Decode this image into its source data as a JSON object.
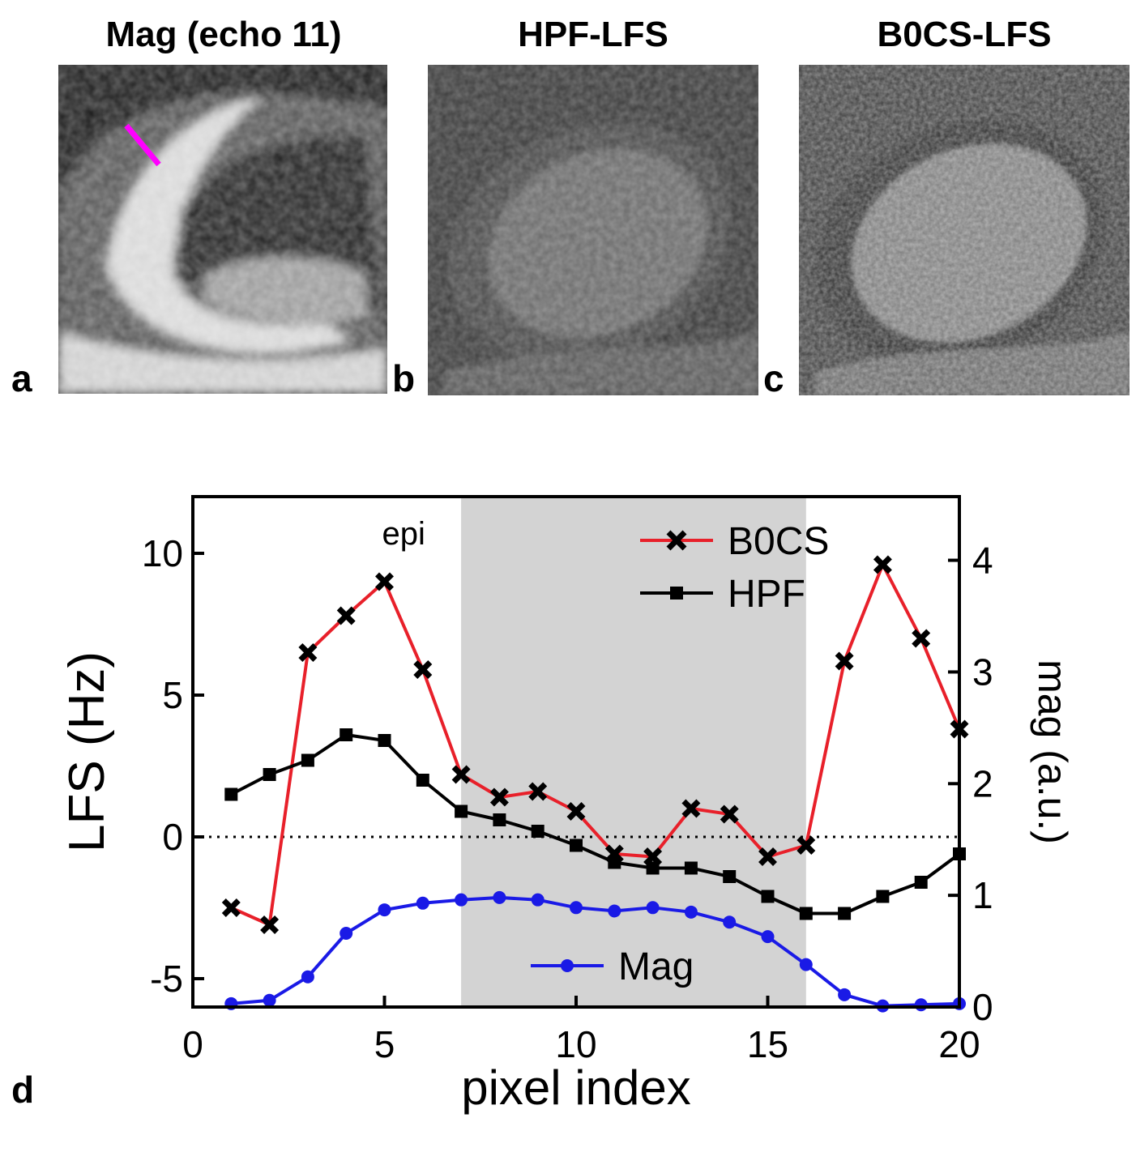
{
  "panels": {
    "a": {
      "title": "Mag (echo 11)",
      "letter": "a"
    },
    "b": {
      "title": "HPF-LFS",
      "letter": "b"
    },
    "c": {
      "title": "B0CS-LFS",
      "letter": "c"
    },
    "d": {
      "letter": "d"
    }
  },
  "colors": {
    "b0cs": "#e8202a",
    "hpf": "#000000",
    "mag": "#1a1ae6",
    "shade": "#d3d3d3",
    "marker_line": "#ff00ff"
  },
  "chart_data": {
    "type": "line",
    "xlabel": "pixel index",
    "ylabel": "LFS (Hz)",
    "y2label": "mag (a.u.)",
    "xlim": [
      0,
      20
    ],
    "ylim": [
      -6,
      12
    ],
    "y2lim": [
      0,
      4.57
    ],
    "x_ticks": [
      0,
      5,
      10,
      15,
      20
    ],
    "y_ticks": [
      -5,
      0,
      5,
      10
    ],
    "y2_ticks": [
      0,
      1,
      2,
      3,
      4
    ],
    "shaded_region": [
      7,
      16
    ],
    "zero_line": true,
    "annotation": "epi",
    "x": [
      1,
      2,
      3,
      4,
      5,
      6,
      7,
      8,
      9,
      10,
      11,
      12,
      13,
      14,
      15,
      16,
      17,
      18,
      19,
      20
    ],
    "series": [
      {
        "name": "B0CS",
        "axis": "left",
        "marker": "x",
        "x": [
          1,
          2,
          3,
          4,
          5,
          6,
          7,
          8,
          9,
          10,
          11,
          12,
          13,
          14,
          15,
          16,
          17,
          18,
          19,
          20
        ],
        "values": [
          -2.5,
          -3.1,
          6.5,
          7.8,
          9.0,
          5.9,
          2.2,
          1.4,
          1.6,
          0.9,
          -0.6,
          -0.7,
          1.0,
          0.8,
          -0.7,
          -0.3,
          6.2,
          9.6,
          7.0,
          3.8
        ]
      },
      {
        "name": "HPF",
        "axis": "left",
        "marker": "square",
        "x": [
          1,
          2,
          3,
          4,
          5,
          6,
          7,
          8,
          9,
          10,
          11,
          12,
          13,
          14,
          15,
          16,
          17,
          18,
          19,
          20
        ],
        "values": [
          1.5,
          2.2,
          2.7,
          3.6,
          3.4,
          2.0,
          0.9,
          0.6,
          0.2,
          -0.3,
          -0.9,
          -1.1,
          -1.1,
          -1.4,
          -2.1,
          -2.7,
          -2.7,
          -2.1,
          -1.6,
          -0.6
        ]
      },
      {
        "name": "Mag",
        "axis": "right",
        "marker": "circle",
        "x": [
          1,
          2,
          3,
          4,
          5,
          6,
          7,
          8,
          9,
          10,
          11,
          12,
          13,
          14,
          15,
          16,
          17,
          18,
          19,
          20
        ],
        "values": [
          0.03,
          0.06,
          0.27,
          0.66,
          0.87,
          0.93,
          0.96,
          0.98,
          0.96,
          0.89,
          0.86,
          0.89,
          0.85,
          0.76,
          0.63,
          0.38,
          0.11,
          0.01,
          0.02,
          0.03
        ]
      }
    ]
  }
}
